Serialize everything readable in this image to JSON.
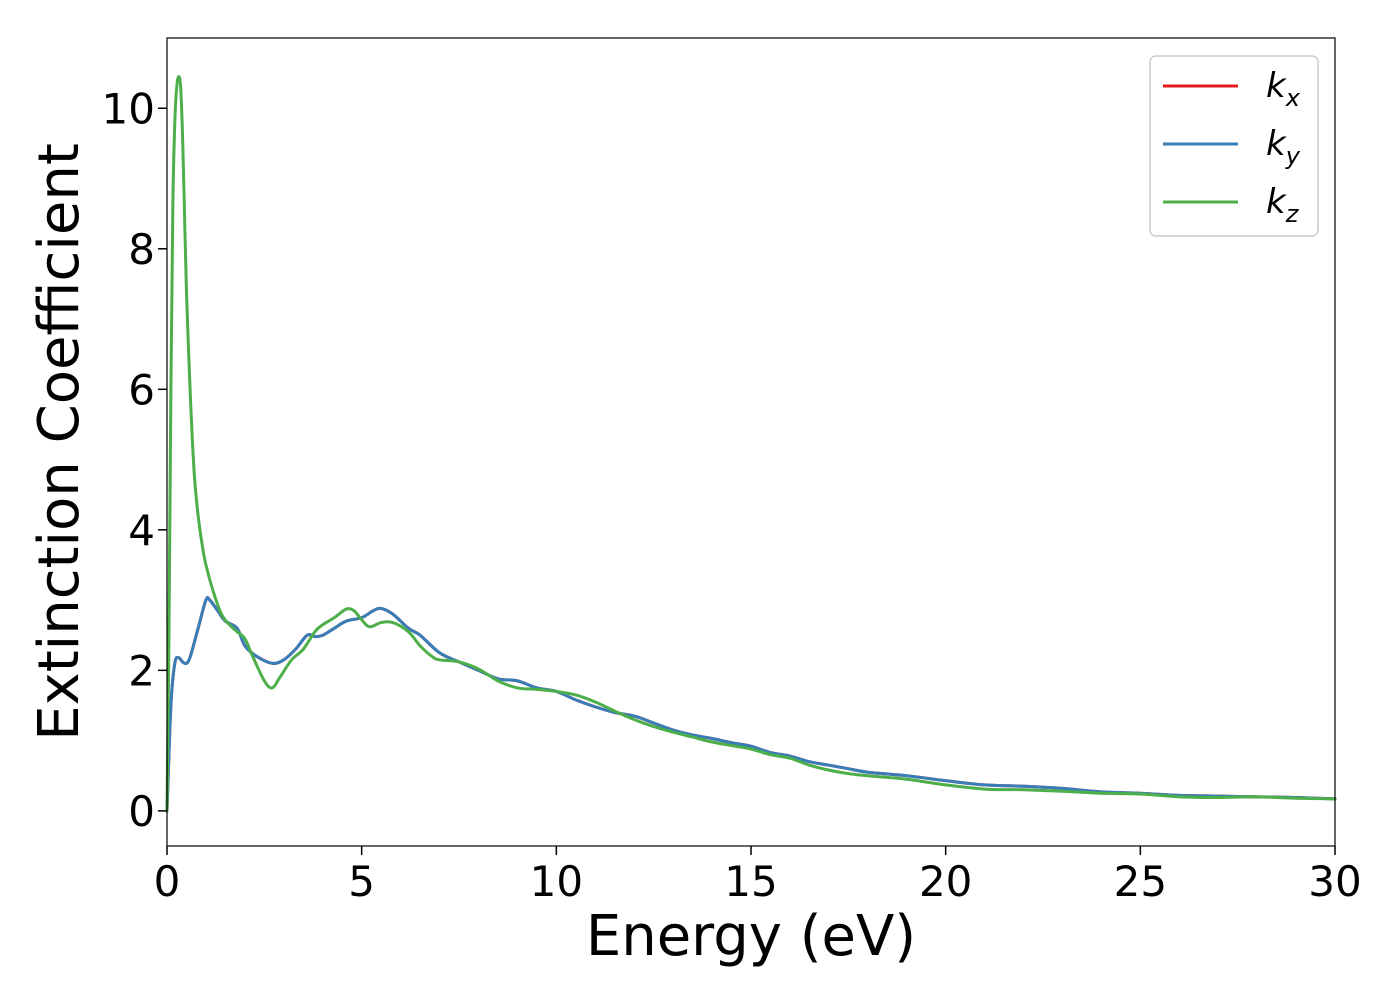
{
  "chart_data": {
    "type": "line",
    "title": "",
    "xlabel": "Energy (eV)",
    "ylabel": "Extinction Coefficient",
    "xlim": [
      0,
      30
    ],
    "ylim": [
      -0.5,
      11
    ],
    "xticks": [
      0,
      5,
      10,
      15,
      20,
      25,
      30
    ],
    "yticks": [
      0,
      2,
      4,
      6,
      8,
      10
    ],
    "xtick_labels": [
      "0",
      "5",
      "10",
      "15",
      "20",
      "25",
      "30"
    ],
    "ytick_labels": [
      "0",
      "2",
      "4",
      "6",
      "8",
      "10"
    ],
    "grid": false,
    "legend_position": "top-right",
    "series": [
      {
        "name": "k_x",
        "base": "k",
        "sub": "x",
        "color": "#e41a1c",
        "x": [
          0,
          0.1,
          0.2,
          0.3,
          0.4,
          0.5,
          0.6,
          0.8,
          1.0,
          1.1,
          1.3,
          1.5,
          1.8,
          2.0,
          2.3,
          2.7,
          3.0,
          3.3,
          3.6,
          3.8,
          4.0,
          4.3,
          4.6,
          5.0,
          5.3,
          5.5,
          5.8,
          6.2,
          6.5,
          7.0,
          7.5,
          8.0,
          8.5,
          9.0,
          9.5,
          10.0,
          10.5,
          11.0,
          11.5,
          12.0,
          12.5,
          13.0,
          13.5,
          14.0,
          14.5,
          15.0,
          15.5,
          16.0,
          16.5,
          17.0,
          17.5,
          18.0,
          19.0,
          20.0,
          21.0,
          22.0,
          23.0,
          24.0,
          25.0,
          26.0,
          27.0,
          28.0,
          29.0,
          30.0
        ],
        "y": [
          0,
          1.5,
          2.1,
          2.18,
          2.12,
          2.1,
          2.2,
          2.6,
          3.0,
          3.0,
          2.85,
          2.7,
          2.6,
          2.35,
          2.2,
          2.1,
          2.15,
          2.3,
          2.5,
          2.48,
          2.5,
          2.6,
          2.7,
          2.75,
          2.85,
          2.88,
          2.8,
          2.6,
          2.5,
          2.25,
          2.12,
          2.0,
          1.88,
          1.85,
          1.75,
          1.7,
          1.58,
          1.48,
          1.4,
          1.35,
          1.25,
          1.15,
          1.08,
          1.03,
          0.97,
          0.92,
          0.83,
          0.78,
          0.7,
          0.65,
          0.6,
          0.55,
          0.5,
          0.43,
          0.37,
          0.35,
          0.32,
          0.27,
          0.25,
          0.22,
          0.21,
          0.2,
          0.19,
          0.17
        ]
      },
      {
        "name": "k_y",
        "base": "k",
        "sub": "y",
        "color": "#377eb8",
        "x": [
          0,
          0.1,
          0.2,
          0.3,
          0.4,
          0.5,
          0.6,
          0.8,
          1.0,
          1.1,
          1.3,
          1.5,
          1.8,
          2.0,
          2.3,
          2.7,
          3.0,
          3.3,
          3.6,
          3.8,
          4.0,
          4.3,
          4.6,
          5.0,
          5.3,
          5.5,
          5.8,
          6.2,
          6.5,
          7.0,
          7.5,
          8.0,
          8.5,
          9.0,
          9.5,
          10.0,
          10.5,
          11.0,
          11.5,
          12.0,
          12.5,
          13.0,
          13.5,
          14.0,
          14.5,
          15.0,
          15.5,
          16.0,
          16.5,
          17.0,
          17.5,
          18.0,
          19.0,
          20.0,
          21.0,
          22.0,
          23.0,
          24.0,
          25.0,
          26.0,
          27.0,
          28.0,
          29.0,
          30.0
        ],
        "y": [
          0,
          1.5,
          2.1,
          2.18,
          2.12,
          2.1,
          2.2,
          2.6,
          3.0,
          3.0,
          2.85,
          2.7,
          2.6,
          2.35,
          2.2,
          2.1,
          2.15,
          2.3,
          2.5,
          2.48,
          2.5,
          2.6,
          2.7,
          2.75,
          2.85,
          2.88,
          2.8,
          2.6,
          2.5,
          2.25,
          2.12,
          2.0,
          1.88,
          1.85,
          1.75,
          1.7,
          1.58,
          1.48,
          1.4,
          1.35,
          1.25,
          1.15,
          1.08,
          1.03,
          0.97,
          0.92,
          0.83,
          0.78,
          0.7,
          0.65,
          0.6,
          0.55,
          0.5,
          0.43,
          0.37,
          0.35,
          0.32,
          0.27,
          0.25,
          0.22,
          0.21,
          0.2,
          0.19,
          0.17
        ]
      },
      {
        "name": "k_z",
        "base": "k",
        "sub": "z",
        "color": "#4daf4a",
        "x": [
          0,
          0.05,
          0.1,
          0.15,
          0.2,
          0.25,
          0.3,
          0.35,
          0.4,
          0.45,
          0.5,
          0.6,
          0.7,
          0.8,
          0.9,
          1.0,
          1.2,
          1.4,
          1.6,
          1.8,
          2.0,
          2.2,
          2.5,
          2.7,
          2.9,
          3.2,
          3.5,
          3.8,
          4.0,
          4.3,
          4.6,
          4.8,
          5.0,
          5.2,
          5.5,
          5.8,
          6.2,
          6.5,
          6.8,
          7.0,
          7.5,
          8.0,
          8.5,
          9.0,
          9.5,
          10.0,
          10.5,
          11.0,
          11.5,
          12.0,
          12.5,
          13.0,
          13.5,
          14.0,
          14.5,
          15.0,
          15.5,
          16.0,
          16.5,
          17.0,
          17.5,
          18.0,
          19.0,
          20.0,
          21.0,
          22.0,
          23.0,
          24.0,
          25.0,
          26.0,
          27.0,
          28.0,
          29.0,
          30.0
        ],
        "y": [
          0,
          2.5,
          6.0,
          8.6,
          9.8,
          10.3,
          10.45,
          10.3,
          9.6,
          8.5,
          7.4,
          5.9,
          4.8,
          4.2,
          3.8,
          3.5,
          3.1,
          2.8,
          2.65,
          2.55,
          2.45,
          2.2,
          1.85,
          1.75,
          1.9,
          2.15,
          2.3,
          2.55,
          2.65,
          2.75,
          2.87,
          2.85,
          2.72,
          2.62,
          2.68,
          2.68,
          2.55,
          2.35,
          2.2,
          2.15,
          2.12,
          2.02,
          1.85,
          1.75,
          1.73,
          1.7,
          1.65,
          1.55,
          1.42,
          1.3,
          1.2,
          1.12,
          1.05,
          0.98,
          0.93,
          0.88,
          0.8,
          0.75,
          0.65,
          0.58,
          0.53,
          0.5,
          0.45,
          0.37,
          0.31,
          0.3,
          0.28,
          0.25,
          0.24,
          0.2,
          0.19,
          0.2,
          0.18,
          0.17
        ]
      }
    ]
  }
}
